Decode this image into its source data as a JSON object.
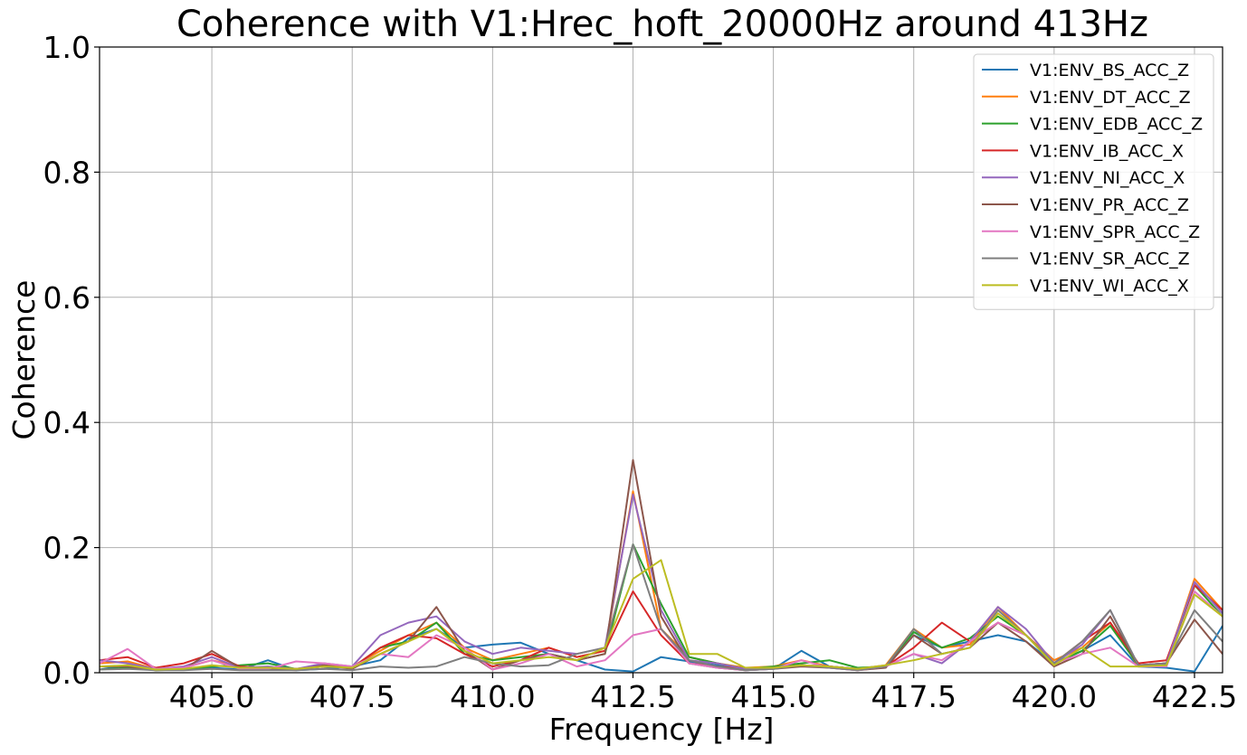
{
  "chart_data": {
    "type": "line",
    "title": "Coherence with V1:Hrec_hoft_20000Hz around 413Hz",
    "xlabel": "Frequency [Hz]",
    "ylabel": "Coherence",
    "xlim": [
      403.0,
      423.0
    ],
    "ylim": [
      0.0,
      1.0
    ],
    "xticks": [
      "405.0",
      "407.5",
      "410.0",
      "412.5",
      "415.0",
      "417.5",
      "420.0",
      "422.5"
    ],
    "yticks": [
      "0.0",
      "0.2",
      "0.4",
      "0.6",
      "0.8",
      "1.0"
    ],
    "grid": true,
    "legend_position": "top-right",
    "x": [
      403.0,
      403.5,
      404.0,
      404.5,
      405.0,
      405.5,
      406.0,
      406.5,
      407.0,
      407.5,
      408.0,
      408.5,
      409.0,
      409.5,
      410.0,
      410.5,
      411.0,
      411.5,
      412.0,
      412.5,
      413.0,
      413.5,
      414.0,
      414.5,
      415.0,
      415.5,
      416.0,
      416.5,
      417.0,
      417.5,
      418.0,
      418.5,
      419.0,
      419.5,
      420.0,
      420.5,
      421.0,
      421.5,
      422.0,
      422.5,
      423.0
    ],
    "series": [
      {
        "name": "V1:ENV_BS_ACC_Z",
        "color": "#1f77b4",
        "values": [
          0.005,
          0.012,
          0.004,
          0.006,
          0.008,
          0.005,
          0.02,
          0.004,
          0.006,
          0.01,
          0.02,
          0.055,
          0.07,
          0.04,
          0.045,
          0.048,
          0.03,
          0.02,
          0.005,
          0.002,
          0.025,
          0.018,
          0.012,
          0.004,
          0.006,
          0.035,
          0.01,
          0.006,
          0.008,
          0.06,
          0.04,
          0.05,
          0.06,
          0.05,
          0.015,
          0.035,
          0.06,
          0.01,
          0.008,
          0.002,
          0.075
        ]
      },
      {
        "name": "V1:ENV_DT_ACC_Z",
        "color": "#ff7f0e",
        "values": [
          0.015,
          0.018,
          0.006,
          0.008,
          0.02,
          0.01,
          0.008,
          0.006,
          0.012,
          0.01,
          0.035,
          0.06,
          0.08,
          0.04,
          0.02,
          0.03,
          0.04,
          0.025,
          0.035,
          0.29,
          0.07,
          0.025,
          0.015,
          0.008,
          0.01,
          0.02,
          0.01,
          0.006,
          0.012,
          0.07,
          0.04,
          0.045,
          0.105,
          0.06,
          0.02,
          0.04,
          0.08,
          0.01,
          0.015,
          0.15,
          0.1
        ]
      },
      {
        "name": "V1:ENV_EDB_ACC_Z",
        "color": "#2ca02c",
        "values": [
          0.005,
          0.008,
          0.004,
          0.005,
          0.01,
          0.012,
          0.015,
          0.006,
          0.01,
          0.008,
          0.04,
          0.05,
          0.08,
          0.03,
          0.02,
          0.025,
          0.03,
          0.02,
          0.03,
          0.205,
          0.11,
          0.025,
          0.015,
          0.006,
          0.01,
          0.015,
          0.02,
          0.008,
          0.01,
          0.065,
          0.04,
          0.055,
          0.09,
          0.06,
          0.015,
          0.035,
          0.075,
          0.012,
          0.015,
          0.14,
          0.09
        ]
      },
      {
        "name": "V1:ENV_IB_ACC_X",
        "color": "#d62728",
        "values": [
          0.02,
          0.025,
          0.008,
          0.015,
          0.03,
          0.01,
          0.008,
          0.006,
          0.01,
          0.008,
          0.04,
          0.06,
          0.055,
          0.03,
          0.01,
          0.02,
          0.04,
          0.025,
          0.035,
          0.13,
          0.06,
          0.015,
          0.01,
          0.006,
          0.008,
          0.012,
          0.01,
          0.006,
          0.01,
          0.04,
          0.08,
          0.05,
          0.08,
          0.06,
          0.015,
          0.05,
          0.08,
          0.015,
          0.02,
          0.14,
          0.1
        ]
      },
      {
        "name": "V1:ENV_NI_ACC_X",
        "color": "#9467bd",
        "values": [
          0.02,
          0.015,
          0.006,
          0.01,
          0.025,
          0.008,
          0.01,
          0.006,
          0.015,
          0.01,
          0.06,
          0.08,
          0.09,
          0.05,
          0.03,
          0.04,
          0.035,
          0.03,
          0.04,
          0.285,
          0.1,
          0.02,
          0.015,
          0.006,
          0.008,
          0.012,
          0.01,
          0.006,
          0.01,
          0.03,
          0.015,
          0.05,
          0.105,
          0.07,
          0.015,
          0.045,
          0.1,
          0.012,
          0.015,
          0.145,
          0.095
        ]
      },
      {
        "name": "V1:ENV_PR_ACC_Z",
        "color": "#8c564b",
        "values": [
          0.01,
          0.01,
          0.004,
          0.005,
          0.035,
          0.008,
          0.006,
          0.004,
          0.012,
          0.006,
          0.03,
          0.05,
          0.105,
          0.035,
          0.005,
          0.02,
          0.03,
          0.02,
          0.03,
          0.34,
          0.09,
          0.015,
          0.008,
          0.004,
          0.006,
          0.01,
          0.008,
          0.004,
          0.008,
          0.06,
          0.03,
          0.04,
          0.08,
          0.05,
          0.01,
          0.03,
          0.09,
          0.012,
          0.015,
          0.085,
          0.03
        ]
      },
      {
        "name": "V1:ENV_SPR_ACC_Z",
        "color": "#e377c2",
        "values": [
          0.015,
          0.038,
          0.006,
          0.008,
          0.02,
          0.006,
          0.006,
          0.018,
          0.015,
          0.01,
          0.03,
          0.025,
          0.06,
          0.04,
          0.005,
          0.015,
          0.03,
          0.01,
          0.02,
          0.06,
          0.07,
          0.015,
          0.008,
          0.004,
          0.006,
          0.02,
          0.008,
          0.004,
          0.01,
          0.03,
          0.02,
          0.05,
          0.08,
          0.06,
          0.015,
          0.03,
          0.04,
          0.01,
          0.01,
          0.13,
          0.09
        ]
      },
      {
        "name": "V1:ENV_SR_ACC_Z",
        "color": "#7f7f7f",
        "values": [
          0.005,
          0.006,
          0.004,
          0.004,
          0.006,
          0.004,
          0.004,
          0.004,
          0.006,
          0.004,
          0.01,
          0.008,
          0.01,
          0.025,
          0.015,
          0.01,
          0.012,
          0.03,
          0.04,
          0.205,
          0.07,
          0.02,
          0.01,
          0.004,
          0.006,
          0.012,
          0.008,
          0.004,
          0.01,
          0.07,
          0.03,
          0.04,
          0.1,
          0.06,
          0.015,
          0.05,
          0.1,
          0.012,
          0.015,
          0.1,
          0.05
        ]
      },
      {
        "name": "V1:ENV_WI_ACC_X",
        "color": "#bcbd22",
        "values": [
          0.01,
          0.012,
          0.005,
          0.006,
          0.012,
          0.008,
          0.008,
          0.006,
          0.01,
          0.008,
          0.03,
          0.05,
          0.07,
          0.035,
          0.015,
          0.02,
          0.025,
          0.02,
          0.04,
          0.15,
          0.18,
          0.03,
          0.03,
          0.008,
          0.008,
          0.012,
          0.01,
          0.006,
          0.012,
          0.02,
          0.03,
          0.04,
          0.095,
          0.06,
          0.012,
          0.04,
          0.01,
          0.01,
          0.012,
          0.125,
          0.09
        ]
      }
    ]
  }
}
